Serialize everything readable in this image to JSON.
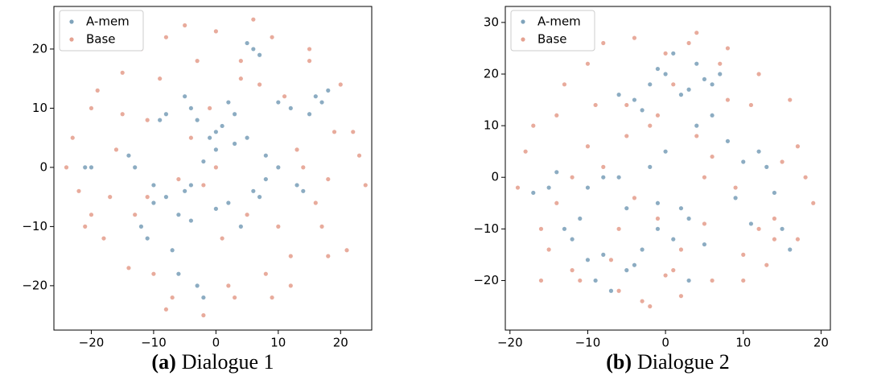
{
  "chart_data": [
    {
      "type": "scatter",
      "caption_label": "(a)",
      "caption": "Dialogue 1",
      "legend": "upper left",
      "xlim": [
        -26,
        25
      ],
      "ylim": [
        -27.5,
        27.2
      ],
      "xticks": [
        {
          "value": -20,
          "label": "−20"
        },
        {
          "value": -10,
          "label": "−10"
        },
        0,
        10,
        20
      ],
      "yticks": [
        {
          "value": -20,
          "label": "−20"
        },
        {
          "value": -10,
          "label": "−10"
        },
        0,
        10,
        20
      ],
      "series": [
        {
          "name": "A-mem",
          "color": "#7fa3bb",
          "x": [
            -5,
            -4,
            -3,
            2,
            3,
            1,
            0,
            -1,
            5,
            6,
            7,
            10,
            12,
            15,
            17,
            18,
            16,
            -8,
            -9,
            -10,
            -12,
            -11,
            -7,
            -6,
            -4,
            -3,
            -2,
            0,
            2,
            4,
            6,
            8,
            10,
            13,
            14,
            -14,
            -13,
            -10,
            -8,
            -5,
            -4,
            -2,
            0,
            3,
            5,
            8,
            -20,
            -21,
            7,
            -6
          ],
          "y": [
            12,
            10,
            8,
            11,
            9,
            7,
            6,
            5,
            21,
            20,
            19,
            11,
            10,
            9,
            11,
            13,
            12,
            9,
            8,
            -3,
            -10,
            -12,
            -14,
            -8,
            -9,
            -20,
            -22,
            -7,
            -6,
            -10,
            -4,
            -2,
            0,
            -3,
            -4,
            2,
            0,
            -6,
            -5,
            -4,
            -3,
            1,
            3,
            4,
            5,
            2,
            0,
            0,
            -5,
            -18
          ]
        },
        {
          "name": "Base",
          "color": "#e5a291",
          "x": [
            -23,
            -22,
            -20,
            -18,
            -15,
            -12,
            -10,
            -8,
            -5,
            -2,
            0,
            3,
            6,
            9,
            12,
            15,
            18,
            20,
            22,
            24,
            -24,
            -21,
            -19,
            -16,
            -14,
            -11,
            -7,
            -3,
            1,
            4,
            8,
            11,
            14,
            17,
            19,
            21,
            23,
            -17,
            -13,
            -9,
            -6,
            -1,
            2,
            5,
            10,
            13,
            16,
            -4,
            7,
            -15,
            12,
            -8,
            -2,
            4,
            9,
            0,
            -11,
            18,
            -20,
            15
          ],
          "y": [
            5,
            -4,
            10,
            -12,
            16,
            20,
            -18,
            22,
            24,
            -25,
            23,
            -22,
            25,
            22,
            -20,
            18,
            -15,
            14,
            6,
            -3,
            0,
            -10,
            13,
            3,
            -17,
            8,
            -22,
            18,
            -12,
            15,
            -18,
            12,
            0,
            -10,
            6,
            -14,
            2,
            -5,
            -8,
            15,
            -2,
            10,
            -20,
            -8,
            -10,
            3,
            -6,
            5,
            14,
            9,
            -15,
            -24,
            -3,
            18,
            -22,
            0,
            -5,
            -2,
            -8,
            20
          ]
        }
      ]
    },
    {
      "type": "scatter",
      "caption_label": "(b)",
      "caption": "Dialogue 2",
      "legend": "upper left",
      "xlim": [
        -20.6,
        21.2
      ],
      "ylim": [
        -29.6,
        33.1
      ],
      "xticks": [
        {
          "value": -20,
          "label": "−20"
        },
        {
          "value": -10,
          "label": "−10"
        },
        0,
        10,
        20
      ],
      "yticks": [
        {
          "value": -20,
          "label": "−20"
        },
        {
          "value": -10,
          "label": "−10"
        },
        0,
        10,
        20,
        30
      ],
      "series": [
        {
          "name": "A-mem",
          "color": "#7fa3bb",
          "x": [
            -2,
            0,
            2,
            4,
            6,
            -4,
            1,
            3,
            5,
            -1,
            7,
            -6,
            -3,
            8,
            10,
            12,
            14,
            -8,
            -10,
            -12,
            -9,
            -11,
            -7,
            -5,
            -3,
            -1,
            1,
            3,
            5,
            -6,
            -2,
            0,
            2,
            9,
            11,
            13,
            -14,
            -15,
            -17,
            4,
            -4,
            6,
            15,
            16,
            -13,
            -8,
            -10,
            -5,
            3,
            -1
          ],
          "y": [
            18,
            20,
            16,
            22,
            18,
            15,
            24,
            17,
            19,
            21,
            20,
            16,
            13,
            7,
            3,
            5,
            -3,
            -15,
            -16,
            -12,
            -20,
            -8,
            -22,
            -18,
            -14,
            -10,
            -12,
            -8,
            -13,
            0,
            2,
            5,
            -6,
            -4,
            -9,
            2,
            1,
            -2,
            -3,
            10,
            -17,
            12,
            -10,
            -14,
            -10,
            0,
            -2,
            -6,
            -20,
            -5
          ]
        },
        {
          "name": "Base",
          "color": "#e5a291",
          "x": [
            -19,
            -18,
            -16,
            -14,
            -12,
            -10,
            -8,
            -6,
            -4,
            -2,
            0,
            2,
            4,
            6,
            8,
            10,
            12,
            14,
            16,
            18,
            19,
            -17,
            -15,
            -13,
            -11,
            -9,
            -7,
            -5,
            -3,
            -1,
            1,
            3,
            5,
            7,
            9,
            11,
            13,
            15,
            17,
            -14,
            -10,
            -6,
            -2,
            2,
            6,
            10,
            14,
            -8,
            -4,
            0,
            4,
            8,
            12,
            -12,
            -16,
            17,
            -5,
            5,
            -1,
            1
          ],
          "y": [
            -2,
            5,
            -10,
            12,
            -18,
            22,
            26,
            -22,
            27,
            -25,
            24,
            -23,
            28,
            -20,
            25,
            -15,
            20,
            -8,
            15,
            0,
            -5,
            10,
            -14,
            18,
            -20,
            14,
            -16,
            8,
            -24,
            12,
            -18,
            26,
            -9,
            22,
            -2,
            14,
            -17,
            3,
            6,
            -5,
            6,
            -10,
            10,
            -14,
            4,
            -20,
            -12,
            2,
            -4,
            -19,
            8,
            15,
            -10,
            0,
            -20,
            -12,
            14,
            0,
            -8,
            18
          ]
        }
      ]
    }
  ]
}
